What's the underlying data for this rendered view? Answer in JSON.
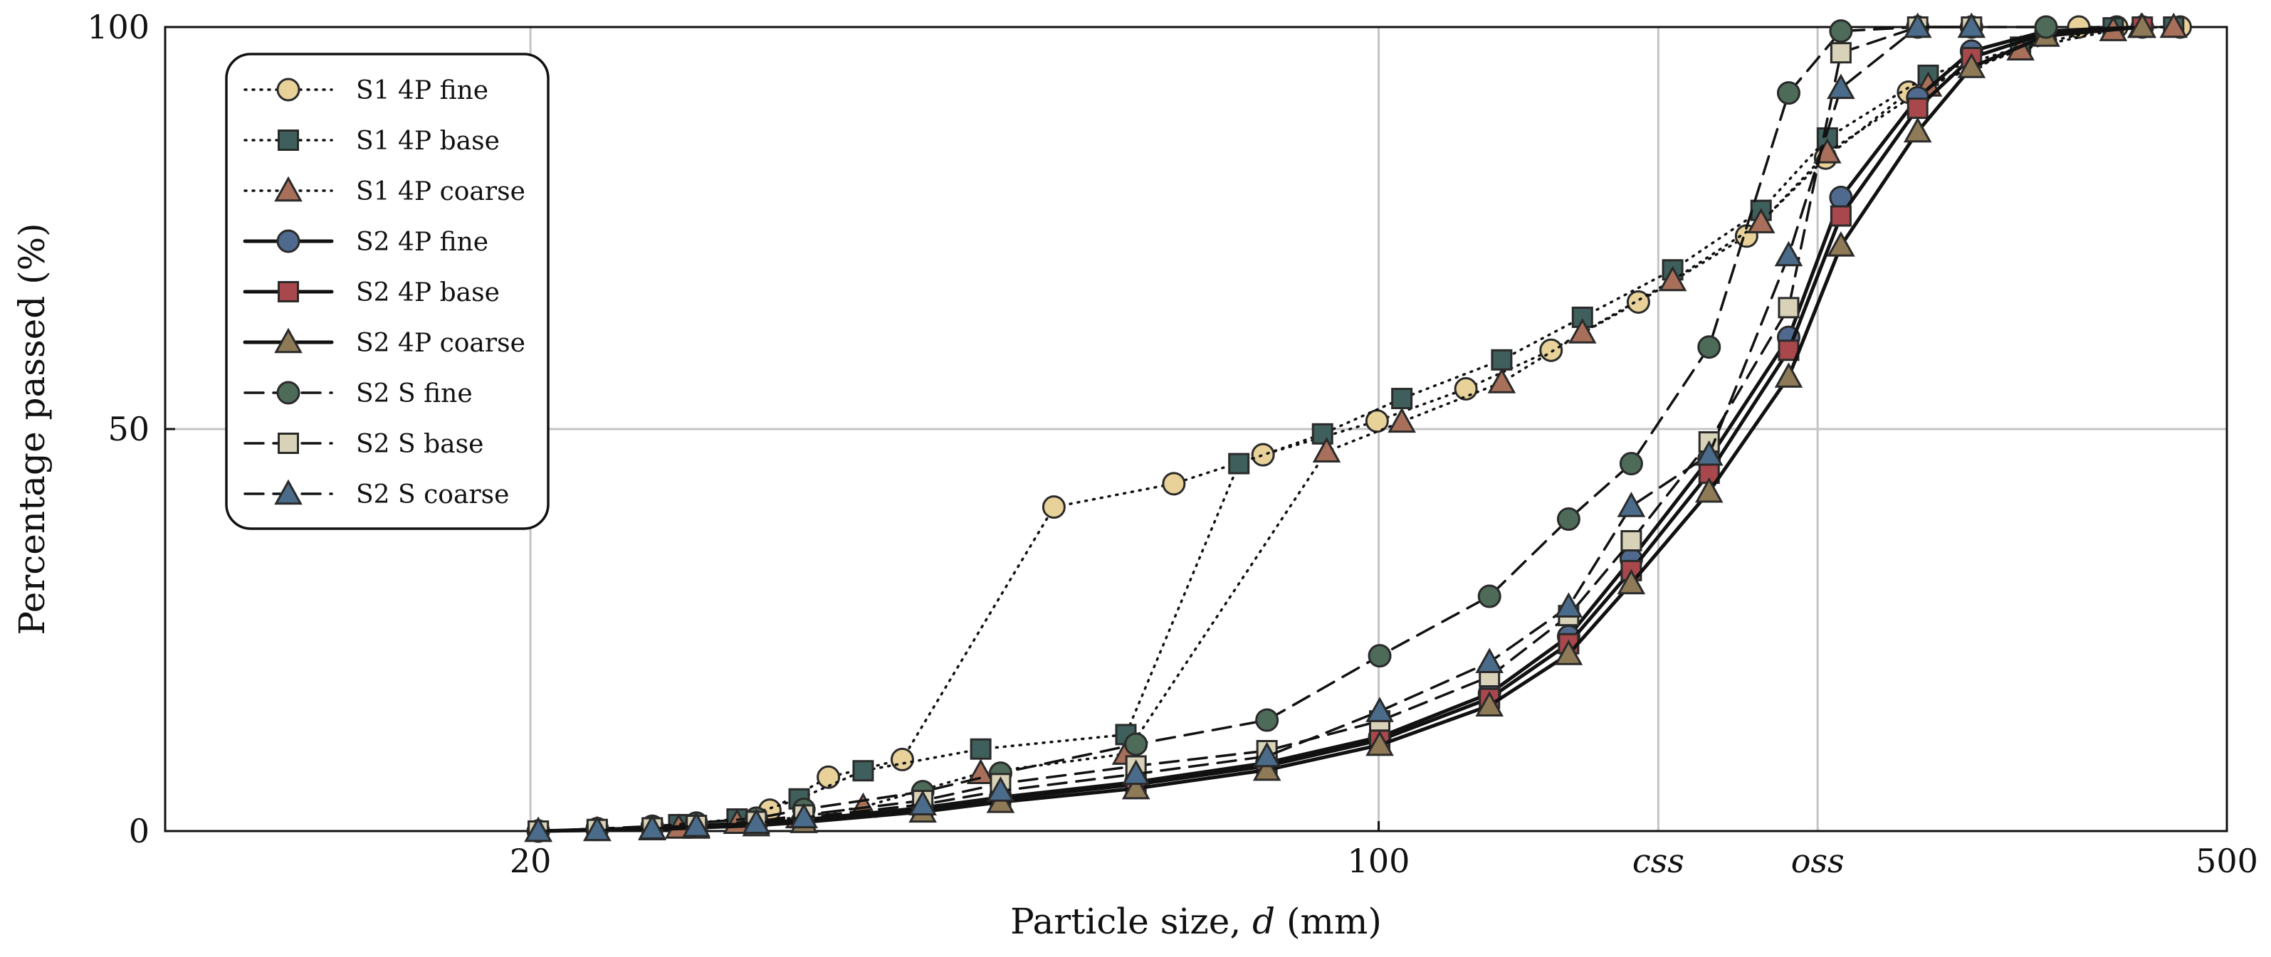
{
  "chart_data": {
    "type": "line",
    "xscale": "log",
    "xlabel_prefix": "Particle size, ",
    "xlabel_var": "d",
    "xlabel_suffix": " (mm)",
    "ylabel": "Percentage passed (%)",
    "xlim": [
      10,
      500
    ],
    "ylim": [
      0,
      100
    ],
    "grid": true,
    "legend_position": "top-left",
    "xticks": [
      {
        "value": 20,
        "label": "20"
      },
      {
        "value": 100,
        "label": "100"
      },
      {
        "value": 500,
        "label": "500"
      }
    ],
    "xannotations": [
      {
        "value": 170,
        "label": "css"
      },
      {
        "value": 230,
        "label": "oss"
      }
    ],
    "yticks": [
      {
        "value": 0,
        "label": "0"
      },
      {
        "value": 50,
        "label": "50"
      },
      {
        "value": 100,
        "label": "100"
      }
    ],
    "series": [
      {
        "name": "S1 4P fine",
        "line": "dotted",
        "marker": "circle",
        "color": "#e8d29a",
        "points": [
          [
            31.5,
            2.6
          ],
          [
            35.2,
            6.7
          ],
          [
            40.5,
            8.9
          ],
          [
            54,
            40.3
          ],
          [
            67.8,
            43.2
          ],
          [
            80.3,
            46.8
          ],
          [
            99.7,
            51
          ],
          [
            118,
            55
          ],
          [
            138.7,
            59.8
          ],
          [
            163.7,
            65.8
          ],
          [
            201,
            74
          ],
          [
            233.5,
            83.7
          ],
          [
            273.3,
            91.9
          ],
          [
            377.5,
            100
          ],
          [
            405.7,
            100
          ],
          [
            457.6,
            100
          ]
        ]
      },
      {
        "name": "S1 4P base",
        "line": "dotted",
        "marker": "square",
        "color": "#3f5f5c",
        "points": [
          [
            26.5,
            0.8
          ],
          [
            29.6,
            1.5
          ],
          [
            33.3,
            4
          ],
          [
            37.6,
            7.5
          ],
          [
            47,
            10.2
          ],
          [
            61.9,
            12
          ],
          [
            76.7,
            45.7
          ],
          [
            89.9,
            49.4
          ],
          [
            104.5,
            53.8
          ],
          [
            126.3,
            58.6
          ],
          [
            147.2,
            63.9
          ],
          [
            174.7,
            69.8
          ],
          [
            206.6,
            77.2
          ],
          [
            234.3,
            86.2
          ],
          [
            283.7,
            94
          ],
          [
            338,
            97.5
          ],
          [
            403,
            99.9
          ],
          [
            452,
            100
          ]
        ]
      },
      {
        "name": "S1 4P coarse",
        "line": "dotted",
        "marker": "triangle",
        "color": "#a8705a",
        "points": [
          [
            26.5,
            0.4
          ],
          [
            29.6,
            1
          ],
          [
            33.3,
            1.7
          ],
          [
            37.6,
            3
          ],
          [
            47,
            7.2
          ],
          [
            61.9,
            9.6
          ],
          [
            90.6,
            47.2
          ],
          [
            104.5,
            50.9
          ],
          [
            126.3,
            55.8
          ],
          [
            147.2,
            62
          ],
          [
            174.7,
            68.5
          ],
          [
            206.6,
            75.7
          ],
          [
            234.3,
            84.4
          ],
          [
            283.7,
            92.7
          ],
          [
            338,
            97.2
          ],
          [
            403,
            99.6
          ],
          [
            425,
            100
          ],
          [
            452,
            100
          ]
        ]
      },
      {
        "name": "S2 4P fine",
        "line": "solid",
        "marker": "circle",
        "color": "#4f6a8e",
        "points": [
          [
            20.3,
            0
          ],
          [
            22.7,
            0.2
          ],
          [
            25.2,
            0.4
          ],
          [
            27.4,
            0.6
          ],
          [
            30.7,
            0.9
          ],
          [
            33.6,
            1.4
          ],
          [
            42.1,
            2.9
          ],
          [
            48.8,
            4.2
          ],
          [
            63.1,
            6.1
          ],
          [
            80.9,
            8.5
          ],
          [
            100.2,
            11.7
          ],
          [
            123.4,
            17.1
          ],
          [
            143.4,
            24.2
          ],
          [
            161.5,
            33.8
          ],
          [
            187.2,
            46.3
          ],
          [
            217.7,
            61.4
          ],
          [
            240.4,
            78.8
          ],
          [
            278.1,
            91.2
          ],
          [
            308,
            97
          ],
          [
            354.8,
            99.5
          ],
          [
            425.9,
            100
          ]
        ]
      },
      {
        "name": "S2 4P base",
        "line": "solid",
        "marker": "square",
        "color": "#a8484c",
        "points": [
          [
            20.3,
            0
          ],
          [
            22.7,
            0.1
          ],
          [
            25.2,
            0.3
          ],
          [
            27.4,
            0.5
          ],
          [
            30.7,
            0.8
          ],
          [
            33.6,
            1.3
          ],
          [
            42.1,
            2.7
          ],
          [
            48.8,
            4
          ],
          [
            63.1,
            5.8
          ],
          [
            80.9,
            8.1
          ],
          [
            100.2,
            11.3
          ],
          [
            123.4,
            16.5
          ],
          [
            143.4,
            23.3
          ],
          [
            161.5,
            32.4
          ],
          [
            187.2,
            44.5
          ],
          [
            217.7,
            59.8
          ],
          [
            240.4,
            76.5
          ],
          [
            278.1,
            89.9
          ],
          [
            308,
            96.2
          ],
          [
            354.8,
            99.2
          ],
          [
            425.9,
            100
          ]
        ]
      },
      {
        "name": "S2 4P coarse",
        "line": "solid",
        "marker": "triangle",
        "color": "#8f7a58",
        "points": [
          [
            20.3,
            0
          ],
          [
            22.7,
            0.1
          ],
          [
            25.2,
            0.2
          ],
          [
            27.4,
            0.4
          ],
          [
            30.7,
            0.7
          ],
          [
            33.6,
            1.1
          ],
          [
            42.1,
            2.4
          ],
          [
            48.8,
            3.6
          ],
          [
            63.1,
            5.3
          ],
          [
            80.9,
            7.6
          ],
          [
            100.2,
            10.7
          ],
          [
            123.4,
            15.6
          ],
          [
            143.4,
            22
          ],
          [
            161.5,
            30.8
          ],
          [
            187.2,
            42.2
          ],
          [
            217.7,
            56.5
          ],
          [
            240.4,
            72.8
          ],
          [
            278.1,
            87
          ],
          [
            308,
            95
          ],
          [
            354.8,
            98.9
          ],
          [
            425.9,
            100
          ]
        ]
      },
      {
        "name": "S2 S fine",
        "line": "dashed",
        "marker": "circle",
        "color": "#4d6b58",
        "points": [
          [
            20.3,
            0
          ],
          [
            22.7,
            0.3
          ],
          [
            25.2,
            0.6
          ],
          [
            27.4,
            1
          ],
          [
            30.7,
            1.6
          ],
          [
            33.6,
            2.7
          ],
          [
            42.1,
            4.9
          ],
          [
            48.8,
            7.2
          ],
          [
            63.1,
            10.8
          ],
          [
            80.9,
            13.8
          ],
          [
            100.2,
            21.8
          ],
          [
            123.4,
            29.2
          ],
          [
            143.4,
            38.8
          ],
          [
            161.5,
            45.7
          ],
          [
            187.2,
            60.2
          ],
          [
            217.7,
            91.8
          ],
          [
            240.4,
            99.5
          ],
          [
            278.1,
            100
          ],
          [
            308,
            100
          ],
          [
            354.8,
            100
          ]
        ]
      },
      {
        "name": "S2 S base",
        "line": "dashed",
        "marker": "square",
        "color": "#d8d2b8",
        "points": [
          [
            20.3,
            0
          ],
          [
            22.7,
            0.2
          ],
          [
            25.2,
            0.4
          ],
          [
            27.4,
            0.7
          ],
          [
            30.7,
            1.2
          ],
          [
            33.6,
            2
          ],
          [
            42.1,
            3.8
          ],
          [
            48.8,
            5.9
          ],
          [
            63.1,
            8.1
          ],
          [
            80.9,
            10
          ],
          [
            100.2,
            13.7
          ],
          [
            123.4,
            19.2
          ],
          [
            143.4,
            26.8
          ],
          [
            161.5,
            36.1
          ],
          [
            187.2,
            48.4
          ],
          [
            217.7,
            65.1
          ],
          [
            240.4,
            96.8
          ],
          [
            278.1,
            100
          ],
          [
            308,
            100
          ]
        ]
      },
      {
        "name": "S2 S coarse",
        "line": "dashed",
        "marker": "triangle",
        "color": "#4a6c8a",
        "points": [
          [
            20.3,
            0
          ],
          [
            22.7,
            0.1
          ],
          [
            25.2,
            0.3
          ],
          [
            27.4,
            0.6
          ],
          [
            30.7,
            1
          ],
          [
            33.6,
            1.7
          ],
          [
            42.1,
            3.3
          ],
          [
            48.8,
            5
          ],
          [
            63.1,
            7.1
          ],
          [
            80.9,
            9.3
          ],
          [
            100.2,
            14.9
          ],
          [
            123.4,
            21
          ],
          [
            143.4,
            27.9
          ],
          [
            161.5,
            40.4
          ],
          [
            187.2,
            46.8
          ],
          [
            217.7,
            71.6
          ],
          [
            240.4,
            92.4
          ],
          [
            278.1,
            100
          ],
          [
            308,
            100
          ]
        ]
      }
    ]
  }
}
